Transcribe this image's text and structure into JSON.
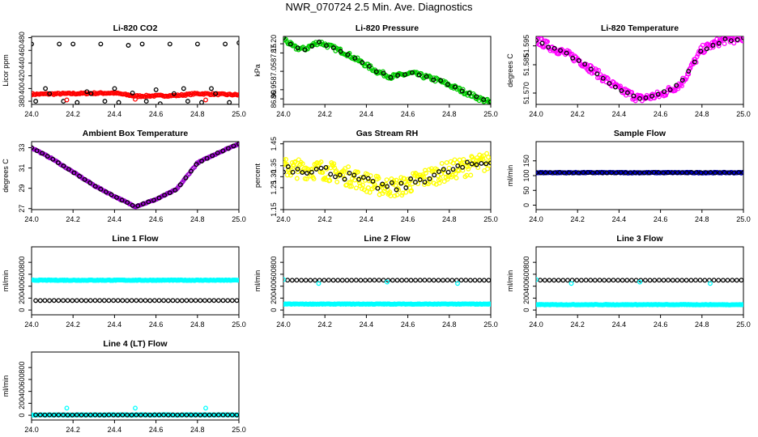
{
  "page": {
    "title": "NWR_070724  2.5 Min. Ave. Diagnostics"
  },
  "colors": {
    "black": "#000000",
    "red": "#ff0000",
    "green": "#00cc00",
    "magenta": "#ff00ff",
    "yellow": "#ffff00",
    "blue": "#0000cc",
    "cyan": "#00ffff",
    "purple": "#9900cc"
  },
  "chart_data": [
    {
      "id": "co2",
      "type": "scatter",
      "title": "Li-820 CO2",
      "ylabel": "Licor ppm",
      "xlim": [
        24.0,
        25.0
      ],
      "ylim": [
        375,
        482
      ],
      "xticks": [
        "24.0",
        "24.2",
        "24.4",
        "24.6",
        "24.8",
        "25.0"
      ],
      "yticks": [
        "380",
        "400",
        "420",
        "440",
        "460",
        "480"
      ],
      "series": [
        {
          "name": "samples",
          "color": "#ff0000",
          "model": "wave",
          "n": 160,
          "jitter": 1.2,
          "points": [
            [
              24.0,
              391
            ],
            [
              24.2,
              392
            ],
            [
              24.4,
              393
            ],
            [
              24.5,
              388
            ],
            [
              24.7,
              389
            ],
            [
              24.8,
              392
            ],
            [
              25.0,
              390
            ]
          ]
        },
        {
          "name": "standards-low",
          "color": "#000000",
          "model": "periodic",
          "start": 24.02,
          "step": 0.0667,
          "values": [
            380,
            392,
            380,
            378,
            392,
            380,
            378,
            393,
            380,
            376,
            392,
            380,
            378,
            392,
            378
          ]
        },
        {
          "name": "standards-high",
          "color": "#000000",
          "model": "periodic",
          "start": 24.0,
          "step": 0.0667,
          "values": [
            470,
            400,
            470,
            470,
            395,
            470,
            400,
            468,
            470,
            398,
            470,
            400,
            470,
            400,
            470,
            472
          ]
        },
        {
          "name": "outliers",
          "color": "#ff0000",
          "model": "explicit",
          "points": [
            [
              24.17,
              382
            ],
            [
              24.5,
              383
            ],
            [
              24.84,
              382
            ]
          ]
        }
      ]
    },
    {
      "id": "pressure",
      "type": "scatter",
      "title": "Li-820 Pressure",
      "ylabel": "kPa",
      "xlim": [
        24.0,
        25.0
      ],
      "ylim": [
        86.87,
        87.24
      ],
      "xticks": [
        "24.0",
        "24.2",
        "24.4",
        "24.6",
        "24.8",
        "25.0"
      ],
      "yticks": [
        "86.90",
        "86.95",
        "87.05",
        "87.15",
        "87.20"
      ],
      "series": [
        {
          "name": "pressure",
          "color": "#00cc00",
          "model": "wave",
          "n": 180,
          "jitter": 0.012,
          "points": [
            [
              24.0,
              87.23
            ],
            [
              24.05,
              87.18
            ],
            [
              24.1,
              87.17
            ],
            [
              24.17,
              87.21
            ],
            [
              24.3,
              87.15
            ],
            [
              24.45,
              87.05
            ],
            [
              24.52,
              87.02
            ],
            [
              24.62,
              87.04
            ],
            [
              24.75,
              87.0
            ],
            [
              24.85,
              86.95
            ],
            [
              24.95,
              86.9
            ],
            [
              25.0,
              86.88
            ]
          ]
        },
        {
          "name": "pressure-avg",
          "color": "#000000",
          "model": "wave",
          "n": 30,
          "jitter": 0.005,
          "points": [
            [
              24.0,
              87.23
            ],
            [
              24.05,
              87.18
            ],
            [
              24.1,
              87.17
            ],
            [
              24.17,
              87.21
            ],
            [
              24.3,
              87.15
            ],
            [
              24.45,
              87.05
            ],
            [
              24.52,
              87.02
            ],
            [
              24.62,
              87.04
            ],
            [
              24.75,
              87.0
            ],
            [
              24.85,
              86.95
            ],
            [
              24.95,
              86.9
            ],
            [
              25.0,
              86.88
            ]
          ]
        }
      ]
    },
    {
      "id": "licor-temp",
      "type": "scatter",
      "title": "Li-820 Temperature",
      "ylabel": "degrees C",
      "xlim": [
        24.0,
        25.0
      ],
      "ylim": [
        51.564,
        51.6
      ],
      "xticks": [
        "24.0",
        "24.2",
        "24.4",
        "24.6",
        "24.8",
        "25.0"
      ],
      "yticks": [
        "51.570",
        "51.585",
        "51.595"
      ],
      "series": [
        {
          "name": "temperature",
          "color": "#ff00ff",
          "model": "wave",
          "n": 220,
          "jitter": 0.0022,
          "points": [
            [
              24.0,
              51.598
            ],
            [
              24.1,
              51.593
            ],
            [
              24.2,
              51.588
            ],
            [
              24.3,
              51.58
            ],
            [
              24.4,
              51.572
            ],
            [
              24.5,
              51.567
            ],
            [
              24.6,
              51.569
            ],
            [
              24.7,
              51.575
            ],
            [
              24.8,
              51.593
            ],
            [
              24.9,
              51.598
            ],
            [
              25.0,
              51.599
            ]
          ]
        },
        {
          "name": "temperature-avg",
          "color": "#000000",
          "model": "wave",
          "n": 35,
          "jitter": 0.0008,
          "points": [
            [
              24.0,
              51.598
            ],
            [
              24.1,
              51.593
            ],
            [
              24.2,
              51.588
            ],
            [
              24.3,
              51.58
            ],
            [
              24.4,
              51.572
            ],
            [
              24.5,
              51.567
            ],
            [
              24.6,
              51.569
            ],
            [
              24.7,
              51.575
            ],
            [
              24.8,
              51.593
            ],
            [
              24.9,
              51.598
            ],
            [
              25.0,
              51.599
            ]
          ]
        }
      ]
    },
    {
      "id": "box-temp",
      "type": "scatter",
      "title": "Ambient Box Temperature",
      "ylabel": "degrees C",
      "xlim": [
        24.0,
        25.0
      ],
      "ylim": [
        26.9,
        33.6
      ],
      "xticks": [
        "24.0",
        "24.2",
        "24.4",
        "24.6",
        "24.8",
        "25.0"
      ],
      "yticks": [
        "27",
        "29",
        "31",
        "33"
      ],
      "series": [
        {
          "name": "box-temp",
          "color": "#9900cc",
          "model": "wave",
          "n": 160,
          "jitter": 0.05,
          "points": [
            [
              24.0,
              33.0
            ],
            [
              24.1,
              31.9
            ],
            [
              24.2,
              30.6
            ],
            [
              24.3,
              29.3
            ],
            [
              24.4,
              28.2
            ],
            [
              24.5,
              27.2
            ],
            [
              24.6,
              27.9
            ],
            [
              24.7,
              28.9
            ],
            [
              24.8,
              31.5
            ],
            [
              24.9,
              32.5
            ],
            [
              25.0,
              33.4
            ]
          ]
        },
        {
          "name": "box-temp-avg",
          "color": "#000000",
          "model": "wave",
          "n": 40,
          "jitter": 0.02,
          "points": [
            [
              24.0,
              33.0
            ],
            [
              24.1,
              31.9
            ],
            [
              24.2,
              30.6
            ],
            [
              24.3,
              29.3
            ],
            [
              24.4,
              28.2
            ],
            [
              24.5,
              27.2
            ],
            [
              24.6,
              27.9
            ],
            [
              24.7,
              28.9
            ],
            [
              24.8,
              31.5
            ],
            [
              24.9,
              32.5
            ],
            [
              25.0,
              33.4
            ]
          ]
        }
      ]
    },
    {
      "id": "rh",
      "type": "scatter",
      "title": "Gas Stream RH",
      "ylabel": "percent",
      "xlim": [
        24.0,
        25.0
      ],
      "ylim": [
        1.15,
        1.46
      ],
      "xticks": [
        "24.0",
        "24.2",
        "24.4",
        "24.6",
        "24.8",
        "25.0"
      ],
      "yticks": [
        "1.15",
        "1.25",
        "1.30",
        "1.35",
        "1.45"
      ],
      "series": [
        {
          "name": "rh",
          "color": "#ffff00",
          "model": "wave",
          "n": 260,
          "jitter": 0.045,
          "points": [
            [
              24.0,
              1.34
            ],
            [
              24.2,
              1.33
            ],
            [
              24.32,
              1.3
            ],
            [
              24.45,
              1.26
            ],
            [
              24.55,
              1.25
            ],
            [
              24.7,
              1.3
            ],
            [
              24.85,
              1.34
            ],
            [
              25.0,
              1.37
            ]
          ]
        },
        {
          "name": "rh-avg",
          "color": "#000000",
          "model": "wave",
          "n": 45,
          "jitter": 0.02,
          "points": [
            [
              24.0,
              1.34
            ],
            [
              24.2,
              1.33
            ],
            [
              24.32,
              1.3
            ],
            [
              24.45,
              1.26
            ],
            [
              24.55,
              1.25
            ],
            [
              24.7,
              1.3
            ],
            [
              24.85,
              1.34
            ],
            [
              25.0,
              1.37
            ]
          ]
        }
      ]
    },
    {
      "id": "sample-flow",
      "type": "scatter",
      "title": "Sample Flow",
      "ylabel": "ml/min",
      "xlim": [
        24.0,
        25.0
      ],
      "ylim": [
        -15,
        215
      ],
      "xticks": [
        "24.0",
        "24.2",
        "24.4",
        "24.6",
        "24.8",
        "25.0"
      ],
      "yticks": [
        "0",
        "50",
        "100",
        "150"
      ],
      "series": [
        {
          "name": "sample-flow",
          "color": "#0000cc",
          "model": "wave",
          "n": 200,
          "jitter": 1.5,
          "points": [
            [
              24.0,
              110
            ],
            [
              25.0,
              110
            ]
          ]
        },
        {
          "name": "sample-flow-avg",
          "color": "#000000",
          "model": "wave",
          "n": 45,
          "jitter": 0.8,
          "points": [
            [
              24.0,
              110
            ],
            [
              25.0,
              110
            ]
          ]
        }
      ]
    },
    {
      "id": "line1-flow",
      "type": "scatter",
      "title": "Line 1 Flow",
      "ylabel": "ml/min",
      "xlim": [
        24.0,
        25.0
      ],
      "ylim": [
        -80,
        1060
      ],
      "xticks": [
        "24.0",
        "24.2",
        "24.4",
        "24.6",
        "24.8",
        "25.0"
      ],
      "yticks": [
        "0",
        "200",
        "400",
        "600",
        "800"
      ],
      "series": [
        {
          "name": "line1-flow",
          "color": "#00ffff",
          "model": "wave",
          "n": 240,
          "jitter": 6,
          "points": [
            [
              24.0,
              500
            ],
            [
              25.0,
              500
            ]
          ]
        },
        {
          "name": "line1-flow-avg",
          "color": "#000000",
          "model": "wave",
          "n": 45,
          "jitter": 1,
          "points": [
            [
              24.02,
              160
            ],
            [
              24.99,
              160
            ]
          ]
        }
      ]
    },
    {
      "id": "line2-flow",
      "type": "scatter",
      "title": "Line 2 Flow",
      "ylabel": "ml/min",
      "xlim": [
        24.0,
        25.0
      ],
      "ylim": [
        -80,
        1060
      ],
      "xticks": [
        "24.0",
        "24.2",
        "24.4",
        "24.6",
        "24.8",
        "25.0"
      ],
      "yticks": [
        "0",
        "200",
        "400",
        "600",
        "800"
      ],
      "series": [
        {
          "name": "line2-flow",
          "color": "#00ffff",
          "model": "wave",
          "n": 240,
          "jitter": 5,
          "points": [
            [
              24.0,
              100
            ],
            [
              25.0,
              100
            ]
          ]
        },
        {
          "name": "line2-flow-avg",
          "color": "#000000",
          "model": "wave",
          "n": 45,
          "jitter": 1,
          "points": [
            [
              24.02,
              500
            ],
            [
              24.99,
              500
            ]
          ]
        },
        {
          "name": "line2-flow-spikes",
          "color": "#00ffff",
          "model": "explicit",
          "points": [
            [
              24.0,
              510
            ],
            [
              24.17,
              445
            ],
            [
              24.5,
              470
            ],
            [
              24.84,
              445
            ]
          ]
        }
      ]
    },
    {
      "id": "line3-flow",
      "type": "scatter",
      "title": "Line 3 Flow",
      "ylabel": "ml/min",
      "xlim": [
        24.0,
        25.0
      ],
      "ylim": [
        -80,
        1060
      ],
      "xticks": [
        "24.0",
        "24.2",
        "24.4",
        "24.6",
        "24.8",
        "25.0"
      ],
      "yticks": [
        "0",
        "200",
        "400",
        "600",
        "800"
      ],
      "series": [
        {
          "name": "line3-flow",
          "color": "#00ffff",
          "model": "wave",
          "n": 240,
          "jitter": 5,
          "points": [
            [
              24.0,
              90
            ],
            [
              25.0,
              90
            ]
          ]
        },
        {
          "name": "line3-flow-avg",
          "color": "#000000",
          "model": "wave",
          "n": 45,
          "jitter": 1,
          "points": [
            [
              24.02,
              500
            ],
            [
              24.99,
              500
            ]
          ]
        },
        {
          "name": "line3-flow-spikes",
          "color": "#00ffff",
          "model": "explicit",
          "points": [
            [
              24.0,
              510
            ],
            [
              24.17,
              445
            ],
            [
              24.5,
              470
            ],
            [
              24.84,
              445
            ]
          ]
        }
      ]
    },
    {
      "id": "line4-flow",
      "type": "scatter",
      "title": "Line 4 (LT) Flow",
      "ylabel": "ml/min",
      "xlim": [
        24.0,
        25.0
      ],
      "ylim": [
        -80,
        1060
      ],
      "xticks": [
        "24.0",
        "24.2",
        "24.4",
        "24.6",
        "24.8",
        "25.0"
      ],
      "yticks": [
        "0",
        "200",
        "400",
        "600",
        "800"
      ],
      "series": [
        {
          "name": "line4-flow",
          "color": "#00ffff",
          "model": "wave",
          "n": 200,
          "jitter": 3,
          "points": [
            [
              24.0,
              5
            ],
            [
              25.0,
              5
            ]
          ]
        },
        {
          "name": "line4-flow-avg",
          "color": "#000000",
          "model": "wave",
          "n": 45,
          "jitter": 1,
          "points": [
            [
              24.02,
              5
            ],
            [
              24.99,
              5
            ]
          ]
        },
        {
          "name": "line4-flow-spikes",
          "color": "#00ffff",
          "model": "explicit",
          "points": [
            [
              24.17,
              120
            ],
            [
              24.5,
              120
            ],
            [
              24.84,
              120
            ]
          ]
        }
      ]
    }
  ]
}
